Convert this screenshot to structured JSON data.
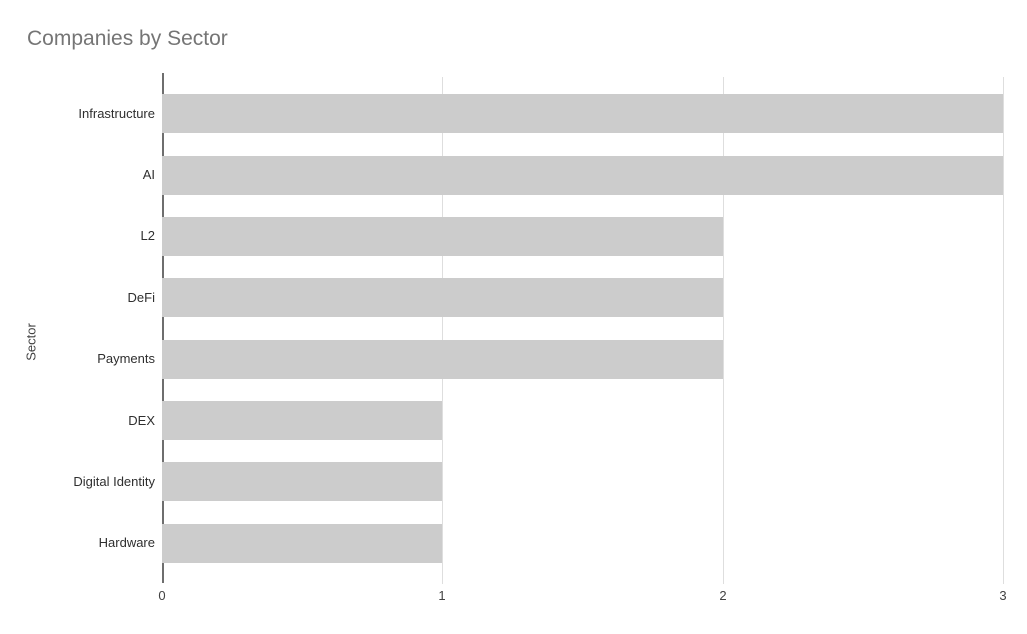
{
  "title": "Companies by Sector",
  "chart_data": {
    "type": "bar",
    "orientation": "horizontal",
    "title": "Companies by Sector",
    "categories": [
      "Infrastructure",
      "AI",
      "L2",
      "DeFi",
      "Payments",
      "DEX",
      "Digital Identity",
      "Hardware"
    ],
    "values": [
      3,
      3,
      2,
      2,
      2,
      1,
      1,
      1
    ],
    "xlabel": "",
    "ylabel": "Sector",
    "xlim": [
      0,
      3
    ],
    "x_ticks": [
      "0",
      "1",
      "2",
      "3"
    ],
    "grid": true,
    "legend": "none",
    "colors": {
      "bar": "#cccccc",
      "gridline": "#dedede",
      "baseline": "#6e6e6e",
      "title_text": "#757575",
      "axis_text": "#424242",
      "category_text": "#2f2f2f",
      "background": "#ffffff"
    }
  }
}
